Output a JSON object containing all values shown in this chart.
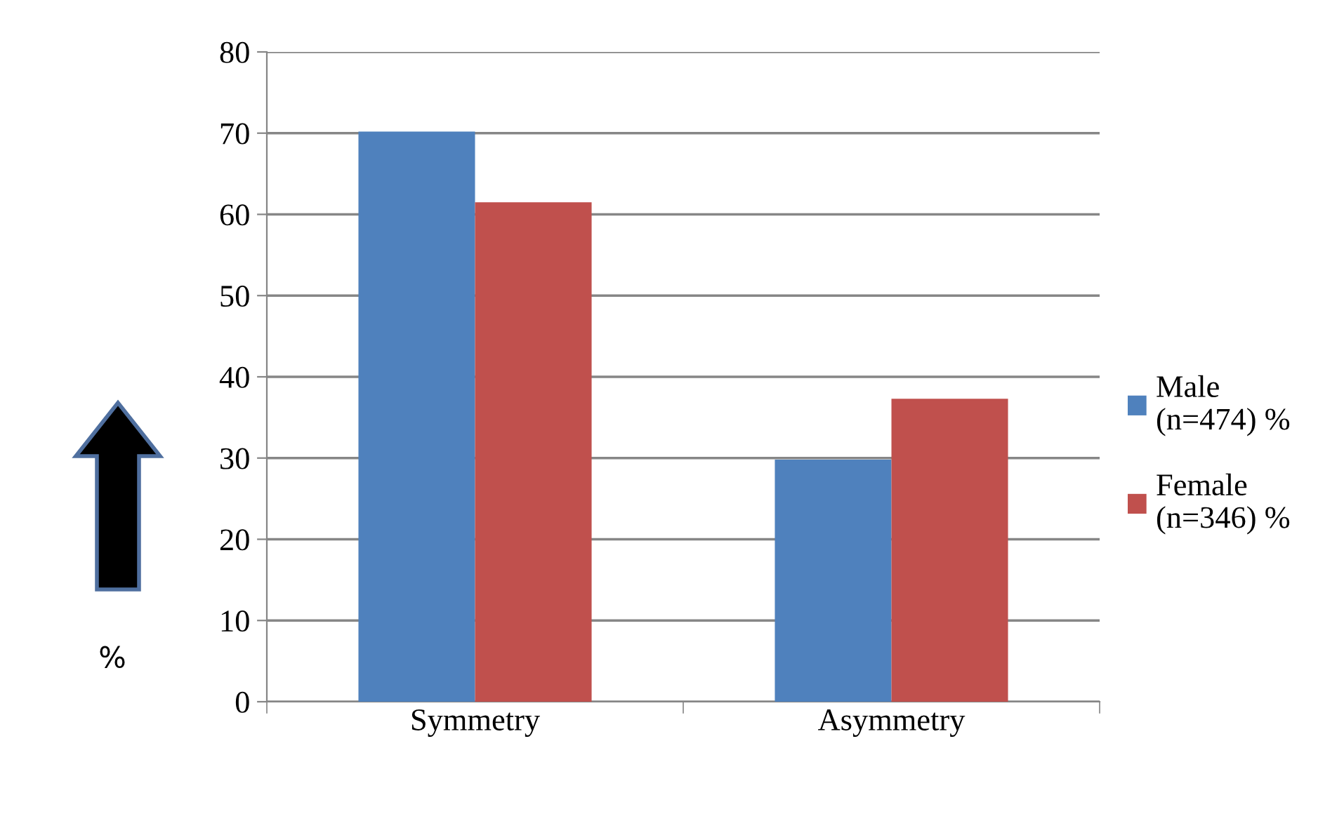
{
  "chart_data": {
    "type": "bar",
    "ylabel": "%",
    "categories": [
      "Symmetry",
      "Asymmetry"
    ],
    "series": [
      {
        "name": "Male\n(n=474) %",
        "color": "#4f81bd",
        "values": [
          70.2,
          29.8
        ]
      },
      {
        "name": "Female\n(n=346) %",
        "color": "#c0504d",
        "values": [
          61.5,
          37.3
        ]
      }
    ],
    "ylim": [
      0,
      80
    ],
    "yticks": [
      0,
      10,
      20,
      30,
      40,
      50,
      60,
      70,
      80
    ],
    "grid": "y",
    "legend": "right"
  }
}
